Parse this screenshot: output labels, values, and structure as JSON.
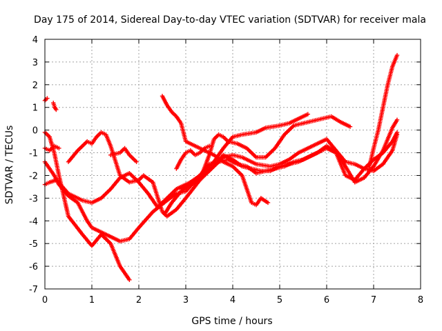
{
  "chart_data": {
    "type": "scatter",
    "title": "Day 175 of 2014, Sidereal Day-to-day VTEC variation (SDTVAR) for receiver mala",
    "xlabel": "GPS time / hours",
    "ylabel": "SDTVAR / TECUs",
    "xlim": [
      0,
      8
    ],
    "ylim": [
      -7,
      4
    ],
    "x_ticks": [
      0,
      1,
      2,
      3,
      4,
      5,
      6,
      7,
      8
    ],
    "y_ticks": [
      -7,
      -6,
      -5,
      -4,
      -3,
      -2,
      -1,
      0,
      1,
      2,
      3,
      4
    ],
    "grid": true,
    "marker": "plus",
    "color": "#ff0000",
    "series": [
      {
        "x": [
          0.0,
          0.02,
          0.05
        ],
        "y": [
          1.3,
          1.35,
          1.4
        ]
      },
      {
        "x": [
          0.18,
          0.21,
          0.24
        ],
        "y": [
          1.2,
          1.0,
          0.9
        ]
      },
      {
        "x": [
          0.0,
          0.1,
          0.2,
          0.3,
          0.5,
          0.8,
          1.0,
          1.2,
          1.4,
          1.6,
          1.8
        ],
        "y": [
          -0.1,
          -0.3,
          -1.0,
          -2.0,
          -3.8,
          -4.6,
          -5.1,
          -4.6,
          -5.0,
          -6.0,
          -6.6
        ]
      },
      {
        "x": [
          0.0,
          0.1,
          0.2,
          0.3,
          0.5,
          0.7,
          0.9,
          1.0,
          1.2,
          1.4,
          1.6,
          1.8,
          2.0,
          2.3,
          2.6,
          2.8,
          3.0,
          3.3,
          3.6,
          3.8,
          4.0,
          4.2,
          4.5,
          4.7,
          5.0,
          5.2,
          5.4,
          5.6
        ],
        "y": [
          -1.4,
          -1.7,
          -2.0,
          -2.4,
          -2.9,
          -3.2,
          -4.0,
          -4.3,
          -4.5,
          -4.7,
          -4.9,
          -4.8,
          -4.3,
          -3.6,
          -3.1,
          -2.8,
          -2.7,
          -2.0,
          -1.4,
          -0.8,
          -0.3,
          -0.2,
          -0.1,
          0.1,
          0.2,
          0.3,
          0.5,
          0.7
        ]
      },
      {
        "x": [
          0.0,
          0.1,
          0.25,
          0.5,
          0.8,
          1.0,
          1.2,
          1.4,
          1.6,
          1.8,
          2.0,
          2.2,
          2.4,
          2.6,
          2.8,
          3.0,
          3.3,
          3.6,
          3.8,
          4.0,
          4.2,
          4.5,
          4.8,
          5.0,
          5.2,
          5.4,
          5.6,
          5.8,
          6.0,
          6.2,
          6.4,
          6.6,
          6.8,
          7.0,
          7.2,
          7.4,
          7.5
        ],
        "y": [
          -2.4,
          -2.3,
          -2.2,
          -2.8,
          -3.1,
          -3.2,
          -3.0,
          -2.6,
          -2.1,
          -1.9,
          -2.3,
          -2.8,
          -3.4,
          -3.0,
          -2.6,
          -2.4,
          -2.1,
          -1.6,
          -1.2,
          -1.1,
          -1.2,
          -1.5,
          -1.6,
          -1.5,
          -1.3,
          -1.0,
          -0.8,
          -0.6,
          -0.4,
          -0.9,
          -1.4,
          -1.5,
          -1.7,
          -1.8,
          -1.5,
          -0.9,
          -0.2
        ]
      },
      {
        "x": [
          0.0,
          0.1,
          0.2,
          0.3
        ],
        "y": [
          -0.8,
          -0.9,
          -0.7,
          -0.8
        ]
      },
      {
        "x": [
          0.5,
          0.7,
          0.9,
          1.0,
          1.1,
          1.2,
          1.3,
          1.4,
          1.6,
          1.8,
          2.0,
          2.1,
          2.3,
          2.5,
          2.6,
          2.8,
          3.0,
          3.3,
          3.6,
          3.8,
          4.0,
          4.2,
          4.4,
          4.6,
          4.8,
          5.0,
          5.2,
          5.4,
          5.6,
          5.8,
          6.0,
          6.2,
          6.4,
          6.6,
          6.8,
          7.0,
          7.2,
          7.4,
          7.5
        ],
        "y": [
          -1.4,
          -0.9,
          -0.5,
          -0.6,
          -0.3,
          -0.1,
          -0.2,
          -0.7,
          -2.0,
          -2.3,
          -2.2,
          -2.0,
          -2.3,
          -3.6,
          -3.8,
          -3.5,
          -3.0,
          -2.2,
          -1.6,
          -1.1,
          -1.3,
          -1.6,
          -1.7,
          -1.8,
          -1.8,
          -1.6,
          -1.5,
          -1.4,
          -1.2,
          -1.0,
          -0.7,
          -1.0,
          -2.0,
          -2.2,
          -1.7,
          -1.3,
          -1.0,
          -0.5,
          -0.1
        ]
      },
      {
        "x": [
          1.4,
          1.6,
          1.7,
          1.8,
          1.95
        ],
        "y": [
          -1.1,
          -1.0,
          -0.8,
          -1.1,
          -1.4
        ]
      },
      {
        "x": [
          2.5,
          2.6,
          2.7,
          2.8,
          2.9,
          3.0,
          3.3,
          3.6,
          3.8,
          4.0,
          4.2,
          4.4,
          4.5,
          4.6,
          4.75
        ],
        "y": [
          1.5,
          1.1,
          0.8,
          0.6,
          0.3,
          -0.5,
          -0.8,
          -1.1,
          -1.4,
          -1.6,
          -2.0,
          -3.2,
          -3.3,
          -3.0,
          -3.2
        ]
      },
      {
        "x": [
          2.55,
          2.7,
          2.9,
          3.1,
          3.3,
          3.5,
          3.7,
          3.9,
          4.1,
          4.3,
          4.5,
          4.7,
          4.9,
          5.1,
          5.3,
          5.5,
          5.7,
          5.9,
          6.0,
          6.2,
          6.4,
          6.6,
          6.8,
          7.0,
          7.2,
          7.4,
          7.5
        ],
        "y": [
          -3.7,
          -3.2,
          -2.7,
          -2.3,
          -2.0,
          -1.5,
          -1.4,
          -1.3,
          -1.5,
          -1.6,
          -1.9,
          -1.8,
          -1.7,
          -1.6,
          -1.4,
          -1.3,
          -1.1,
          -0.9,
          -0.8,
          -1.0,
          -1.6,
          -2.3,
          -2.1,
          -1.6,
          -0.9,
          0.1,
          0.45
        ]
      },
      {
        "x": [
          2.8,
          2.9,
          3.0,
          3.1,
          3.2,
          3.3,
          3.4,
          3.5
        ],
        "y": [
          -1.7,
          -1.3,
          -1.0,
          -0.9,
          -1.1,
          -1.0,
          -0.8,
          -0.7
        ]
      },
      {
        "x": [
          2.9,
          3.1,
          3.3,
          3.5,
          3.6,
          3.7,
          3.8,
          3.9,
          4.1,
          4.3,
          4.5,
          4.7,
          4.9,
          5.1,
          5.3,
          5.5,
          5.7,
          5.9,
          6.1,
          6.3,
          6.5
        ],
        "y": [
          -2.6,
          -2.4,
          -2.2,
          -1.1,
          -0.4,
          -0.2,
          -0.3,
          -0.5,
          -0.6,
          -0.8,
          -1.2,
          -1.2,
          -0.8,
          -0.2,
          0.2,
          0.3,
          0.4,
          0.5,
          0.6,
          0.35,
          0.15
        ]
      },
      {
        "x": [
          6.9,
          7.0,
          7.1,
          7.2,
          7.3,
          7.4,
          7.5
        ],
        "y": [
          -1.7,
          -0.8,
          0.0,
          1.0,
          2.0,
          2.8,
          3.3
        ]
      }
    ]
  }
}
